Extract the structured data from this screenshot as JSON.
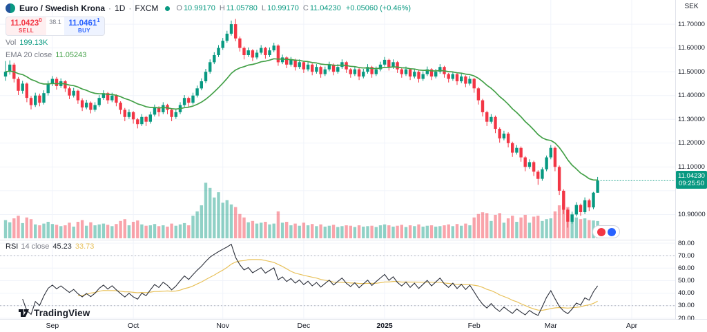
{
  "colors": {
    "up": "#089981",
    "down": "#f23645",
    "ema": "#43a047",
    "rsi": "#2a2e39",
    "rsi_smoothing": "#e8c15a",
    "grid": "#f0f3fa",
    "band": "#b2b5be",
    "axis_border": "#e0e3eb",
    "text_dark": "#131722",
    "text_gray": "#787b86",
    "sell": "#f23645",
    "buy": "#2962ff",
    "last_price_bg": "#089981"
  },
  "legend": {
    "symbol": "Euro / Swedish Krona",
    "separator": "·",
    "interval": "1D",
    "exchange": "FXCM",
    "o_label": "O",
    "o_value": "10.99170",
    "h_label": "H",
    "h_value": "11.05780",
    "l_label": "L",
    "l_value": "10.99170",
    "c_label": "C",
    "c_value": "11.04230",
    "change": "+0.05060 (+0.46%)"
  },
  "trade_widget": {
    "sell_price": "11.0423",
    "sell_sup": "0",
    "sell_label": "SELL",
    "spread": "38.1",
    "buy_price": "11.0461",
    "buy_sup": "1",
    "buy_label": "BUY"
  },
  "volume_legend": {
    "label": "Vol",
    "value": "199.13K"
  },
  "ema_legend": {
    "label": "EMA 20 close",
    "value": "11.05243"
  },
  "rsi_legend": {
    "label": "RSI",
    "params": "14 close",
    "value": "45.23",
    "smoothing_value": "33.73"
  },
  "price_axis": {
    "currency": "SEK",
    "ticks": [
      {
        "label": "11.70000",
        "price": 11.7
      },
      {
        "label": "11.60000",
        "price": 11.6
      },
      {
        "label": "11.50000",
        "price": 11.5
      },
      {
        "label": "11.40000",
        "price": 11.4
      },
      {
        "label": "11.30000",
        "price": 11.3
      },
      {
        "label": "11.20000",
        "price": 11.2
      },
      {
        "label": "11.10000",
        "price": 11.1
      },
      {
        "label": "10.90000",
        "price": 10.9
      }
    ],
    "last_price": {
      "label": "11.04230",
      "countdown": "09:25:50",
      "price": 11.0423
    }
  },
  "rsi_axis": {
    "ticks": [
      {
        "label": "80.00",
        "value": 80
      },
      {
        "label": "70.00",
        "value": 70
      },
      {
        "label": "60.00",
        "value": 60
      },
      {
        "label": "50.00",
        "value": 50
      },
      {
        "label": "40.00",
        "value": 40
      },
      {
        "label": "30.00",
        "value": 30
      },
      {
        "label": "20.00",
        "value": 20
      }
    ]
  },
  "time_axis": {
    "ticks": [
      {
        "label": "Sep",
        "index": 11,
        "major": false
      },
      {
        "label": "Oct",
        "index": 30,
        "major": false
      },
      {
        "label": "Nov",
        "index": 51,
        "major": false
      },
      {
        "label": "Dec",
        "index": 70,
        "major": false
      },
      {
        "label": "2025",
        "index": 89,
        "major": true
      },
      {
        "label": "Feb",
        "index": 110,
        "major": false
      },
      {
        "label": "Mar",
        "index": 128,
        "major": false
      },
      {
        "label": "Apr",
        "index": 147,
        "major": false
      }
    ]
  },
  "branding": {
    "logo_text": "TradingView"
  },
  "chart_data": {
    "type": "candlestick",
    "title": "Euro / Swedish Krona · 1D · FXCM",
    "overlays": [
      "EMA 20",
      "Volume",
      "RSI 14 with SMA 14 smoothing"
    ],
    "price_range": {
      "min": 10.8,
      "max": 11.732
    },
    "rsi_range": {
      "min": 20,
      "max": 80
    },
    "grid_prices": [
      11.7,
      11.6,
      11.5,
      11.4,
      11.3,
      11.2,
      11.1,
      11.0,
      10.9
    ],
    "rsi_bands": [
      70,
      30
    ],
    "volume_max": 650,
    "ema_period": 20,
    "rsi_period": 14,
    "rsi_smoothing_period": 14,
    "last_close": 11.0423,
    "candles": [
      [
        11.48,
        11.545,
        11.462,
        11.5,
        210
      ],
      [
        11.5,
        11.548,
        11.488,
        11.53,
        185
      ],
      [
        11.53,
        11.538,
        11.455,
        11.47,
        230
      ],
      [
        11.47,
        11.478,
        11.402,
        11.42,
        260
      ],
      [
        11.42,
        11.462,
        11.408,
        11.45,
        175
      ],
      [
        11.45,
        11.455,
        11.372,
        11.39,
        240
      ],
      [
        11.39,
        11.398,
        11.342,
        11.36,
        220
      ],
      [
        11.36,
        11.412,
        11.352,
        11.4,
        160
      ],
      [
        11.4,
        11.408,
        11.355,
        11.37,
        150
      ],
      [
        11.37,
        11.422,
        11.362,
        11.41,
        170
      ],
      [
        11.41,
        11.462,
        11.4,
        11.45,
        190
      ],
      [
        11.45,
        11.482,
        11.44,
        11.47,
        165
      ],
      [
        11.47,
        11.478,
        11.425,
        11.44,
        155
      ],
      [
        11.44,
        11.472,
        11.432,
        11.46,
        140
      ],
      [
        11.46,
        11.465,
        11.415,
        11.43,
        150
      ],
      [
        11.43,
        11.438,
        11.385,
        11.4,
        180
      ],
      [
        11.4,
        11.432,
        11.392,
        11.42,
        135
      ],
      [
        11.42,
        11.425,
        11.365,
        11.38,
        190
      ],
      [
        11.38,
        11.388,
        11.335,
        11.35,
        210
      ],
      [
        11.35,
        11.382,
        11.342,
        11.37,
        145
      ],
      [
        11.37,
        11.375,
        11.325,
        11.34,
        185
      ],
      [
        11.34,
        11.372,
        11.332,
        11.36,
        150
      ],
      [
        11.36,
        11.402,
        11.352,
        11.39,
        160
      ],
      [
        11.39,
        11.422,
        11.382,
        11.41,
        170
      ],
      [
        11.41,
        11.415,
        11.365,
        11.38,
        155
      ],
      [
        11.38,
        11.412,
        11.372,
        11.4,
        140
      ],
      [
        11.4,
        11.405,
        11.355,
        11.37,
        165
      ],
      [
        11.37,
        11.376,
        11.322,
        11.34,
        200
      ],
      [
        11.34,
        11.348,
        11.292,
        11.31,
        220
      ],
      [
        11.31,
        11.342,
        11.302,
        11.33,
        150
      ],
      [
        11.33,
        11.335,
        11.282,
        11.3,
        190
      ],
      [
        11.3,
        11.306,
        11.262,
        11.28,
        205
      ],
      [
        11.28,
        11.322,
        11.272,
        11.31,
        160
      ],
      [
        11.31,
        11.315,
        11.272,
        11.29,
        145
      ],
      [
        11.29,
        11.332,
        11.282,
        11.32,
        150
      ],
      [
        11.32,
        11.362,
        11.312,
        11.35,
        165
      ],
      [
        11.35,
        11.355,
        11.312,
        11.33,
        140
      ],
      [
        11.33,
        11.372,
        11.322,
        11.36,
        150
      ],
      [
        11.36,
        11.365,
        11.322,
        11.34,
        135
      ],
      [
        11.34,
        11.345,
        11.292,
        11.31,
        170
      ],
      [
        11.31,
        11.342,
        11.302,
        11.33,
        145
      ],
      [
        11.33,
        11.372,
        11.322,
        11.36,
        160
      ],
      [
        11.36,
        11.402,
        11.352,
        11.39,
        175
      ],
      [
        11.39,
        11.395,
        11.352,
        11.37,
        150
      ],
      [
        11.37,
        11.412,
        11.362,
        11.4,
        260
      ],
      [
        11.4,
        11.442,
        11.392,
        11.43,
        310
      ],
      [
        11.43,
        11.472,
        11.422,
        11.46,
        380
      ],
      [
        11.46,
        11.512,
        11.452,
        11.5,
        640
      ],
      [
        11.5,
        11.552,
        11.492,
        11.54,
        580
      ],
      [
        11.54,
        11.582,
        11.532,
        11.57,
        470
      ],
      [
        11.57,
        11.612,
        11.562,
        11.6,
        530
      ],
      [
        11.6,
        11.642,
        11.592,
        11.63,
        410
      ],
      [
        11.63,
        11.672,
        11.622,
        11.66,
        440
      ],
      [
        11.66,
        11.715,
        11.652,
        11.7,
        390
      ],
      [
        11.7,
        11.722,
        11.628,
        11.64,
        360
      ],
      [
        11.64,
        11.648,
        11.585,
        11.6,
        280
      ],
      [
        11.6,
        11.606,
        11.552,
        11.57,
        240
      ],
      [
        11.57,
        11.602,
        11.562,
        11.59,
        185
      ],
      [
        11.59,
        11.595,
        11.545,
        11.56,
        200
      ],
      [
        11.56,
        11.592,
        11.552,
        11.58,
        170
      ],
      [
        11.58,
        11.612,
        11.572,
        11.6,
        180
      ],
      [
        11.6,
        11.605,
        11.555,
        11.57,
        190
      ],
      [
        11.57,
        11.602,
        11.562,
        11.59,
        160
      ],
      [
        11.59,
        11.622,
        11.582,
        11.61,
        170
      ],
      [
        11.61,
        11.615,
        11.525,
        11.54,
        310
      ],
      [
        11.54,
        11.572,
        11.532,
        11.56,
        180
      ],
      [
        11.56,
        11.565,
        11.515,
        11.53,
        190
      ],
      [
        11.53,
        11.562,
        11.522,
        11.55,
        150
      ],
      [
        11.55,
        11.555,
        11.505,
        11.52,
        170
      ],
      [
        11.52,
        11.552,
        11.512,
        11.54,
        145
      ],
      [
        11.54,
        11.545,
        11.495,
        11.51,
        180
      ],
      [
        11.51,
        11.542,
        11.502,
        11.53,
        150
      ],
      [
        11.53,
        11.535,
        11.485,
        11.5,
        165
      ],
      [
        11.5,
        11.532,
        11.492,
        11.52,
        140
      ],
      [
        11.52,
        11.525,
        11.475,
        11.49,
        160
      ],
      [
        11.49,
        11.522,
        11.482,
        11.51,
        135
      ],
      [
        11.51,
        11.542,
        11.502,
        11.53,
        145
      ],
      [
        11.53,
        11.535,
        11.485,
        11.5,
        155
      ],
      [
        11.5,
        11.532,
        11.492,
        11.52,
        130
      ],
      [
        11.52,
        11.552,
        11.512,
        11.54,
        140
      ],
      [
        11.54,
        11.545,
        11.495,
        11.51,
        150
      ],
      [
        11.51,
        11.515,
        11.475,
        11.49,
        145
      ],
      [
        11.49,
        11.522,
        11.482,
        11.51,
        130
      ],
      [
        11.51,
        11.515,
        11.465,
        11.48,
        150
      ],
      [
        11.48,
        11.512,
        11.472,
        11.5,
        135
      ],
      [
        11.5,
        11.532,
        11.492,
        11.52,
        140
      ],
      [
        11.52,
        11.525,
        11.475,
        11.49,
        145
      ],
      [
        11.49,
        11.522,
        11.482,
        11.51,
        130
      ],
      [
        11.51,
        11.542,
        11.502,
        11.53,
        150
      ],
      [
        11.53,
        11.562,
        11.522,
        11.55,
        160
      ],
      [
        11.55,
        11.555,
        11.505,
        11.52,
        150
      ],
      [
        11.52,
        11.552,
        11.512,
        11.54,
        135
      ],
      [
        11.54,
        11.545,
        11.495,
        11.51,
        145
      ],
      [
        11.51,
        11.515,
        11.475,
        11.49,
        155
      ],
      [
        11.49,
        11.522,
        11.482,
        11.51,
        130
      ],
      [
        11.51,
        11.515,
        11.465,
        11.48,
        150
      ],
      [
        11.48,
        11.512,
        11.472,
        11.5,
        140
      ],
      [
        11.5,
        11.505,
        11.455,
        11.47,
        160
      ],
      [
        11.47,
        11.502,
        11.462,
        11.49,
        135
      ],
      [
        11.49,
        11.522,
        11.482,
        11.51,
        145
      ],
      [
        11.51,
        11.515,
        11.465,
        11.48,
        150
      ],
      [
        11.48,
        11.512,
        11.472,
        11.5,
        135
      ],
      [
        11.5,
        11.532,
        11.492,
        11.52,
        140
      ],
      [
        11.52,
        11.525,
        11.475,
        11.49,
        150
      ],
      [
        11.49,
        11.495,
        11.455,
        11.47,
        160
      ],
      [
        11.47,
        11.502,
        11.462,
        11.49,
        140
      ],
      [
        11.49,
        11.495,
        11.445,
        11.46,
        165
      ],
      [
        11.46,
        11.492,
        11.452,
        11.48,
        145
      ],
      [
        11.48,
        11.485,
        11.435,
        11.45,
        170
      ],
      [
        11.45,
        11.482,
        11.442,
        11.47,
        150
      ],
      [
        11.47,
        11.475,
        11.412,
        11.43,
        240
      ],
      [
        11.43,
        11.436,
        11.362,
        11.38,
        280
      ],
      [
        11.38,
        11.386,
        11.312,
        11.33,
        300
      ],
      [
        11.33,
        11.336,
        11.272,
        11.29,
        290
      ],
      [
        11.29,
        11.322,
        11.282,
        11.31,
        200
      ],
      [
        11.31,
        11.316,
        11.242,
        11.26,
        270
      ],
      [
        11.26,
        11.266,
        11.202,
        11.22,
        290
      ],
      [
        11.22,
        11.252,
        11.212,
        11.24,
        180
      ],
      [
        11.24,
        11.246,
        11.182,
        11.2,
        230
      ],
      [
        11.2,
        11.206,
        11.142,
        11.16,
        260
      ],
      [
        11.16,
        11.192,
        11.152,
        11.18,
        190
      ],
      [
        11.18,
        11.186,
        11.122,
        11.14,
        240
      ],
      [
        11.14,
        11.146,
        11.082,
        11.1,
        270
      ],
      [
        11.1,
        11.132,
        11.092,
        11.12,
        180
      ],
      [
        11.12,
        11.126,
        11.062,
        11.08,
        250
      ],
      [
        11.08,
        11.086,
        11.025,
        11.05,
        260
      ],
      [
        11.05,
        11.098,
        11.042,
        11.09,
        200
      ],
      [
        11.09,
        11.148,
        11.082,
        11.14,
        220
      ],
      [
        11.14,
        11.192,
        11.132,
        11.18,
        230
      ],
      [
        11.18,
        11.186,
        11.082,
        11.1,
        310
      ],
      [
        11.1,
        11.106,
        10.982,
        11.0,
        380
      ],
      [
        11.0,
        11.006,
        10.902,
        10.92,
        400
      ],
      [
        10.92,
        10.926,
        10.845,
        10.87,
        360
      ],
      [
        10.87,
        10.912,
        10.862,
        10.9,
        280
      ],
      [
        10.9,
        10.952,
        10.892,
        10.94,
        240
      ],
      [
        10.94,
        10.946,
        10.895,
        10.91,
        220
      ],
      [
        10.91,
        10.972,
        10.902,
        10.96,
        230
      ],
      [
        10.96,
        10.966,
        10.915,
        10.93,
        210
      ],
      [
        10.93,
        10.995,
        10.922,
        10.992,
        205
      ],
      [
        10.9917,
        11.0578,
        10.9917,
        11.0423,
        199.13
      ]
    ]
  }
}
